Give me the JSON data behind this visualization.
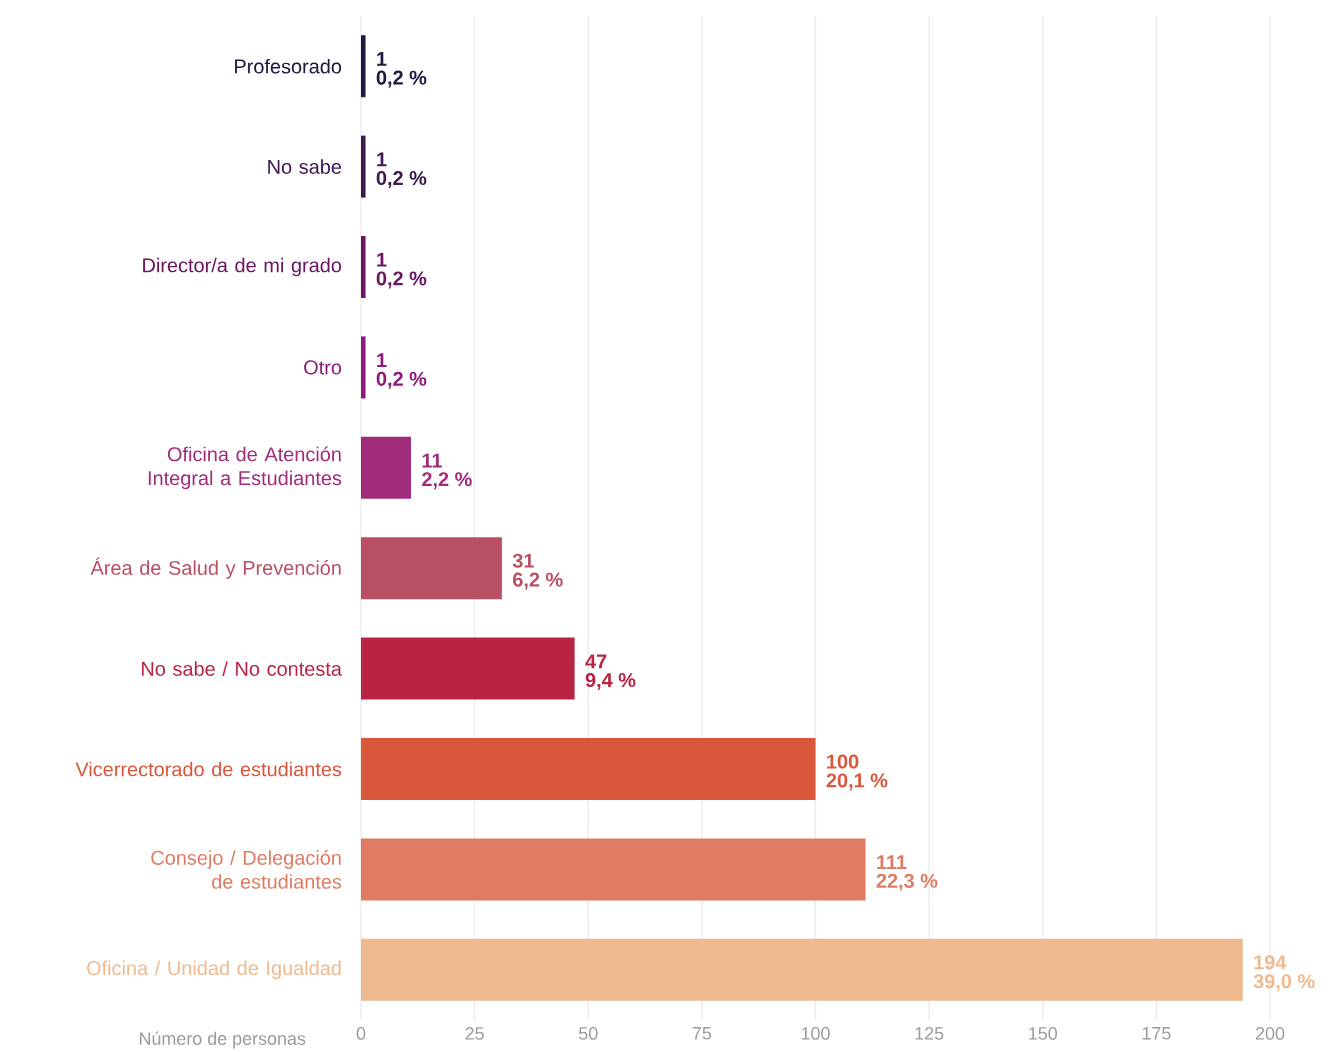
{
  "chart_data": {
    "type": "bar",
    "orientation": "horizontal",
    "xlabel": "Número de personas",
    "categories": [
      "Profesorado",
      "No sabe",
      "Director/a de mi grado",
      "Otro",
      "Oficina de Atención Integral a Estudiantes",
      "Área de Salud y Prevención",
      "No sabe / No contesta",
      "Vicerrectorado de estudiantes",
      "Consejo / Delegación de estudiantes",
      "Oficina / Unidad de Igualdad"
    ],
    "values": [
      1,
      1,
      1,
      1,
      11,
      31,
      47,
      100,
      111,
      194
    ],
    "colors": [
      "#1f1a3f",
      "#3d1a4f",
      "#6b1663",
      "#8d1a7a",
      "#a02c7a",
      "#b84f63",
      "#b82441",
      "#d9573b",
      "#df7b62",
      "#eeb98e"
    ],
    "xlim": [
      0,
      200
    ],
    "xticks": [
      0,
      25,
      50,
      75,
      100,
      125,
      150,
      175,
      200
    ],
    "grid": "x",
    "data_labels": true,
    "annotations": [
      {
        "text": "0,2 %",
        "x": 1,
        "y": "Profesorado"
      },
      {
        "text": "0,2 %",
        "x": 1,
        "y": "No sabe"
      },
      {
        "text": "0,2 %",
        "x": 1,
        "y": "Director/a de mi grado"
      },
      {
        "text": "0,2 %",
        "x": 1,
        "y": "Otro"
      },
      {
        "text": "2,2 %",
        "x": 11,
        "y": "Oficina de Atención Integral a Estudiantes"
      },
      {
        "text": "6,2 %",
        "x": 31,
        "y": "Área de Salud y Prevención"
      },
      {
        "text": "9,4 %",
        "x": 47,
        "y": "No sabe / No contesta"
      },
      {
        "text": "20,1 %",
        "x": 100,
        "y": "Vicerrectorado de estudiantes"
      },
      {
        "text": "22,3 %",
        "x": 111,
        "y": "Consejo / Delegación de estudiantes"
      },
      {
        "text": "39,0 %",
        "x": 194,
        "y": "Oficina / Unidad de Igualdad"
      }
    ]
  }
}
